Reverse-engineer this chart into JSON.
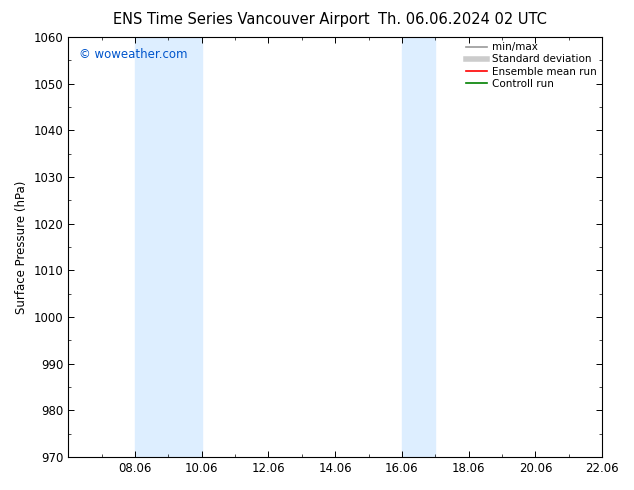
{
  "title_left": "ENS Time Series Vancouver Airport",
  "title_right": "Th. 06.06.2024 02 UTC",
  "ylabel": "Surface Pressure (hPa)",
  "ylim": [
    970,
    1060
  ],
  "yticks": [
    970,
    980,
    990,
    1000,
    1010,
    1020,
    1030,
    1040,
    1050,
    1060
  ],
  "xtick_labels": [
    "08.06",
    "10.06",
    "12.06",
    "14.06",
    "16.06",
    "18.06",
    "20.06",
    "22.06"
  ],
  "xtick_positions_days": [
    2,
    4,
    6,
    8,
    10,
    12,
    14,
    16
  ],
  "xlim": [
    0,
    16
  ],
  "shaded_bands": [
    {
      "start_day": 2,
      "end_day": 4
    },
    {
      "start_day": 10,
      "end_day": 11
    }
  ],
  "shade_color": "#ddeeff",
  "watermark_text": "© woweather.com",
  "watermark_color": "#0055cc",
  "legend_items": [
    {
      "label": "min/max",
      "color": "#999999",
      "lw": 1.2
    },
    {
      "label": "Standard deviation",
      "color": "#cccccc",
      "lw": 4
    },
    {
      "label": "Ensemble mean run",
      "color": "#ff0000",
      "lw": 1.2
    },
    {
      "label": "Controll run",
      "color": "#008000",
      "lw": 1.2
    }
  ],
  "bg_color": "#ffffff",
  "plot_bg_color": "#ffffff",
  "tick_label_fontsize": 8.5,
  "axis_label_fontsize": 8.5,
  "title_fontsize": 10.5,
  "legend_fontsize": 7.5
}
